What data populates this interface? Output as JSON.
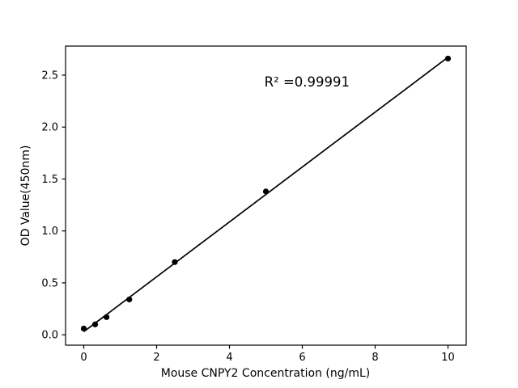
{
  "figure": {
    "background": "#ffffff",
    "foreground": "#000000"
  },
  "chart_data": {
    "type": "scatter",
    "title": "",
    "xlabel": "Mouse CNPY2 Concentration (ng/mL)",
    "ylabel": "OD Value(450nm)",
    "x": [
      0,
      0.3125,
      0.625,
      1.25,
      2.5,
      5,
      10
    ],
    "y": [
      0.06,
      0.1,
      0.17,
      0.34,
      0.7,
      1.38,
      2.66
    ],
    "trendline": true,
    "annotation": {
      "text": "R² =0.99991",
      "x": 6.13,
      "y": 2.39
    },
    "xlim": [
      -0.5,
      10.5
    ],
    "ylim": [
      -0.1,
      2.78
    ],
    "xticks": [
      0,
      2,
      4,
      6,
      8,
      10
    ],
    "xtick_labels": [
      "0",
      "2",
      "4",
      "6",
      "8",
      "10"
    ],
    "yticks": [
      0.0,
      0.5,
      1.0,
      1.5,
      2.0,
      2.5
    ],
    "ytick_labels": [
      "0.0",
      "0.5",
      "1.0",
      "1.5",
      "2.0",
      "2.5"
    ],
    "grid": false,
    "legend": null,
    "marker_color": "#000000",
    "line_color": "#000000"
  }
}
